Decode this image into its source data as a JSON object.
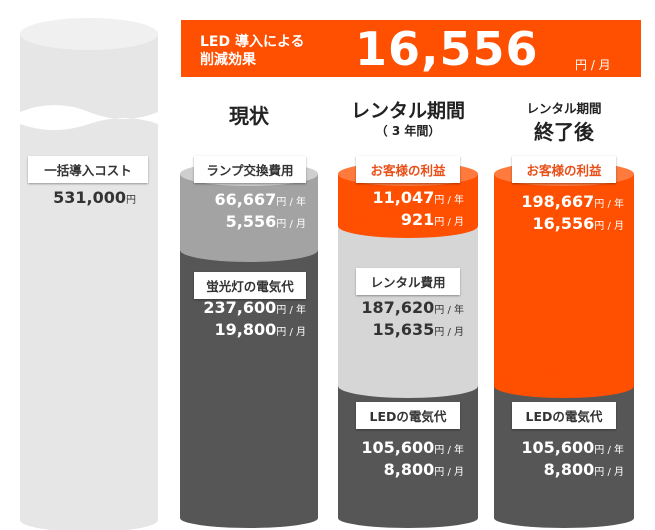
{
  "banner": {
    "label_line1": "LED 導入による",
    "label_line2": "削減効果",
    "value": "16,556",
    "unit": "円 / 月"
  },
  "columns": {
    "initial": {
      "label": "一括導入コスト",
      "value": "531,000",
      "unit": "円"
    },
    "current": {
      "heading": "現状",
      "lamp": {
        "label": "ランプ交換費用",
        "year": "66,667",
        "month": "5,556"
      },
      "electric": {
        "label": "蛍光灯の電気代",
        "year": "237,600",
        "month": "19,800"
      }
    },
    "rental": {
      "heading": "レンタル期間",
      "subheading": "（ 3 年間）",
      "benefit": {
        "label": "お客様の利益",
        "year": "11,047",
        "month": "921"
      },
      "rental_fee": {
        "label": "レンタル費用",
        "year": "187,620",
        "month": "15,635"
      },
      "electric": {
        "label": "LEDの電気代",
        "year": "105,600",
        "month": "8,800"
      }
    },
    "after": {
      "heading_line1": "レンタル期間",
      "heading_line2": "終了後",
      "benefit": {
        "label": "お客様の利益",
        "year": "198,667",
        "month": "16,556"
      },
      "electric": {
        "label": "LEDの電気代",
        "year": "105,600",
        "month": "8,800"
      }
    }
  },
  "units": {
    "per_year": "円 / 年",
    "per_month": "円 / 月"
  },
  "colors": {
    "orange": "#ff4f00",
    "light_gray": "#d6d6d6",
    "mid_gray": "#a3a3a3",
    "dark_gray": "#565656",
    "pale": "#ededed"
  }
}
